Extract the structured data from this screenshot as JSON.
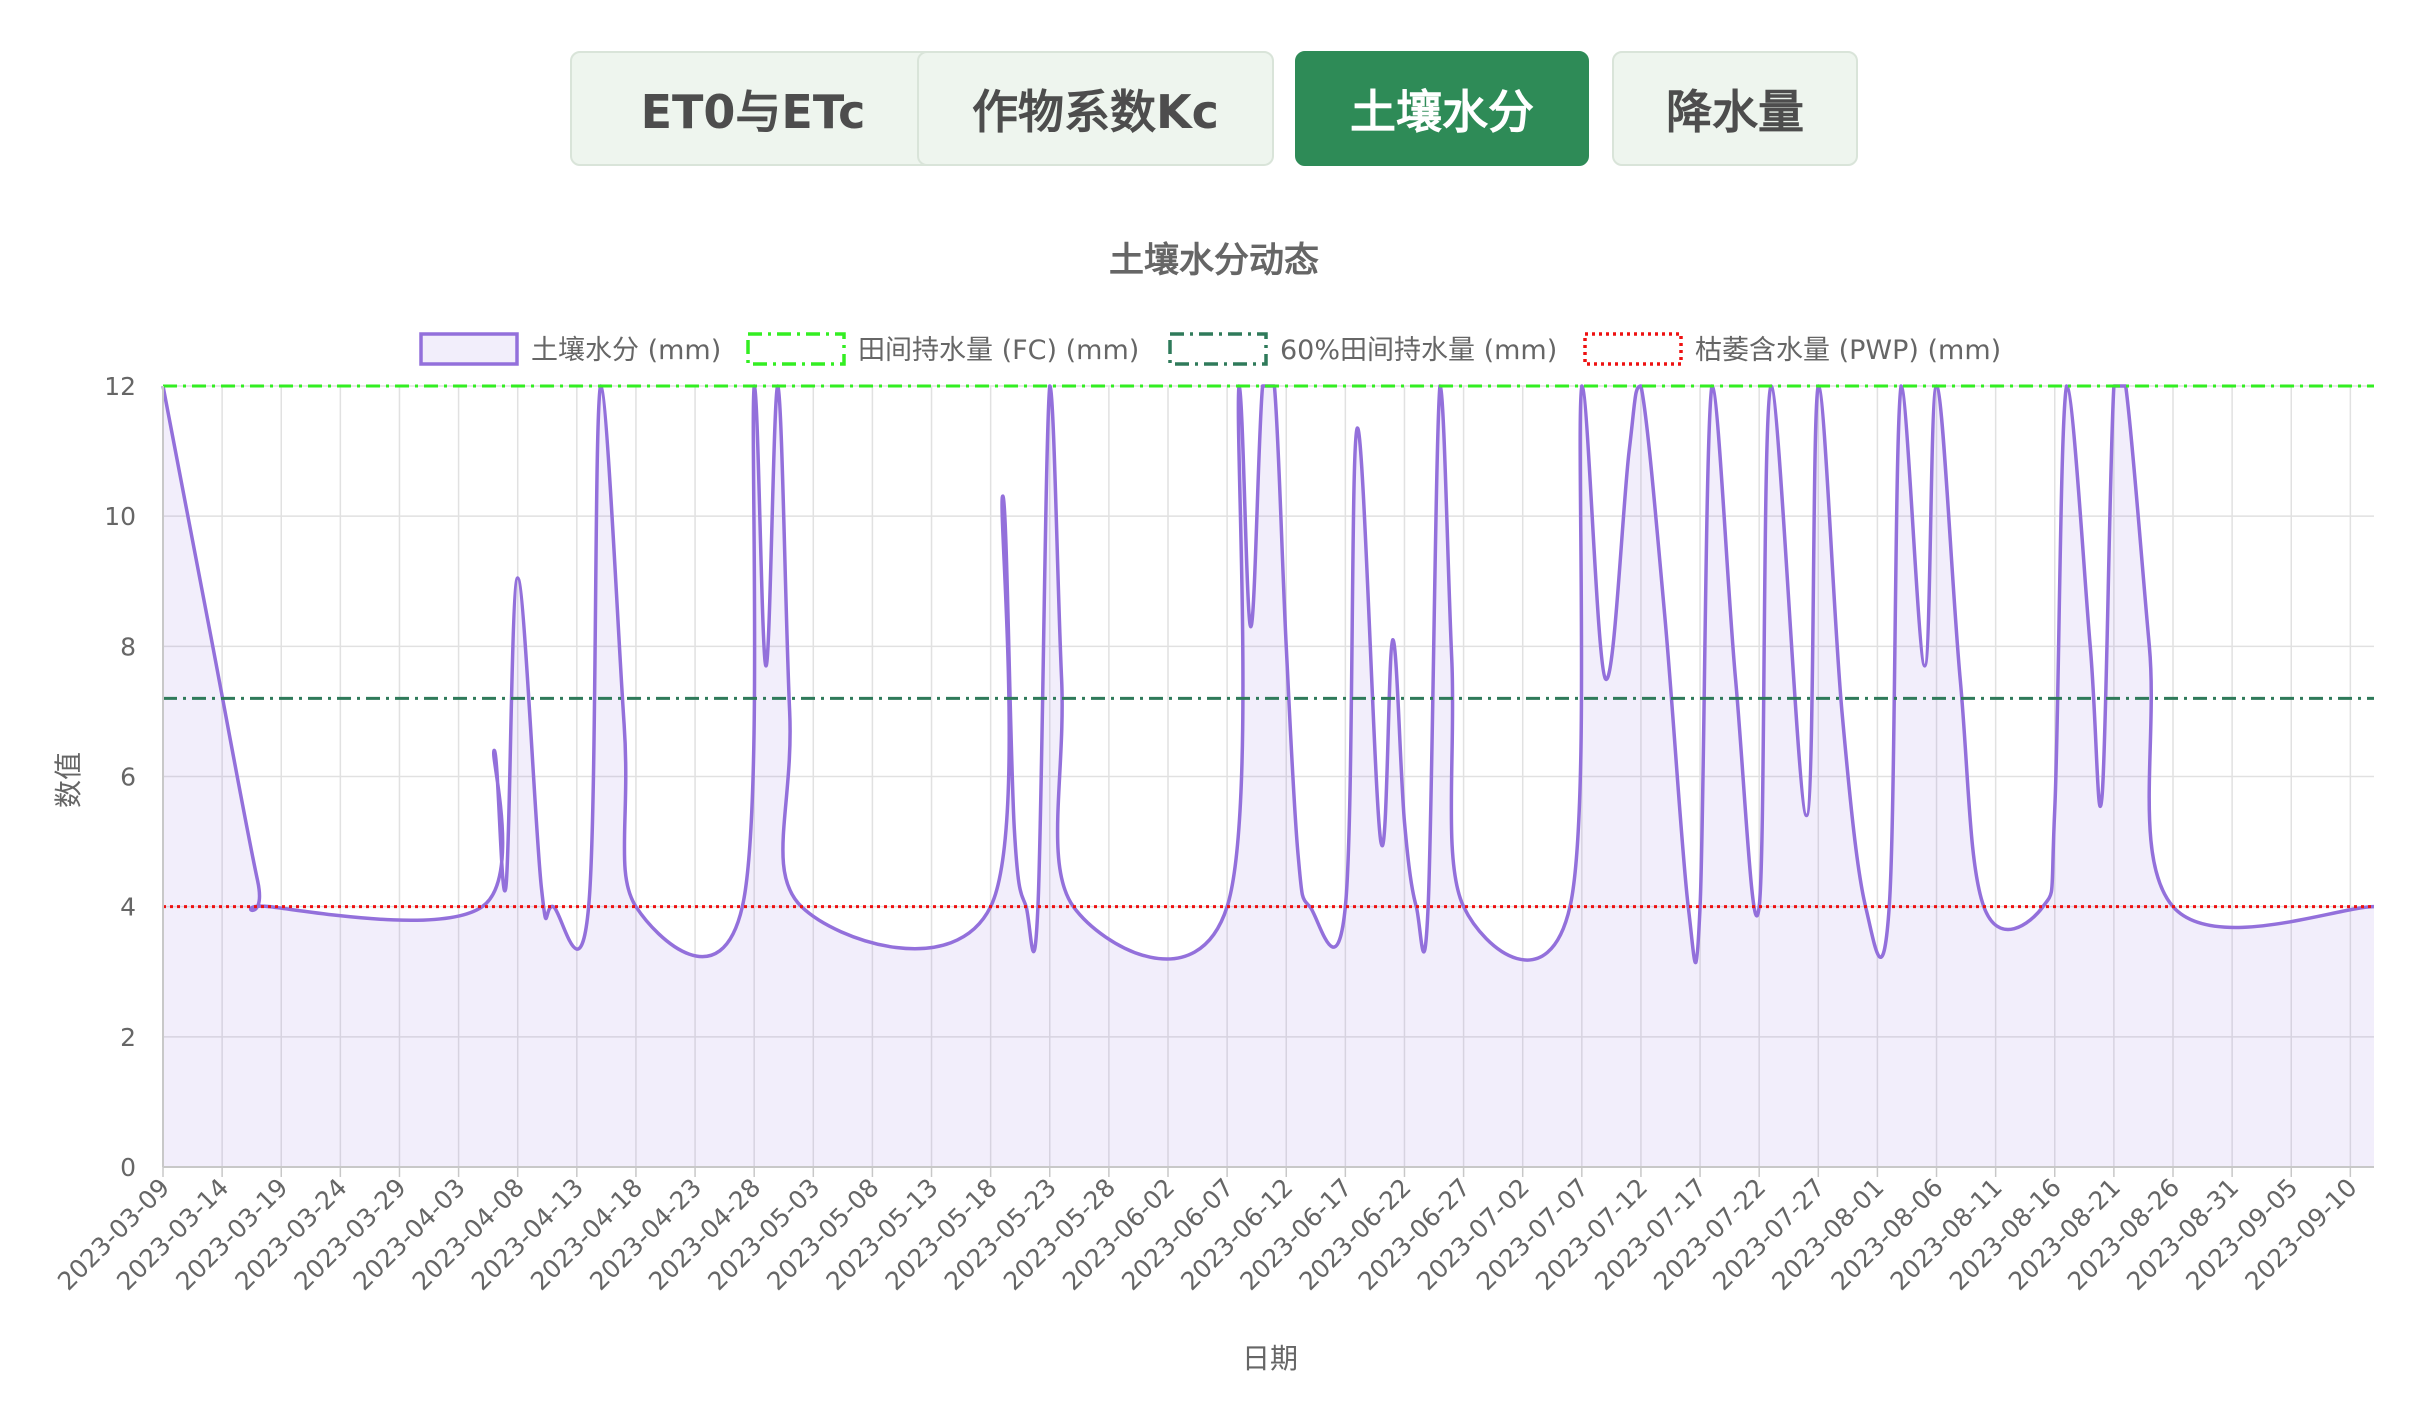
{
  "tabs": [
    {
      "label": "ET0与ETc",
      "active": false
    },
    {
      "label": "作物系数Kc",
      "active": false
    },
    {
      "label": "土壤水分",
      "active": true
    },
    {
      "label": "降水量",
      "active": false
    }
  ],
  "chart_data": {
    "type": "line",
    "title": "土壤水分动态",
    "xlabel": "日期",
    "ylabel": "数值",
    "ylim": [
      0,
      12
    ],
    "y_ticks": [
      0,
      2,
      4,
      6,
      8,
      10,
      12
    ],
    "x_range": [
      "2023-03-09",
      "2023-09-12"
    ],
    "x_tick_labels": [
      "2023-03-09",
      "2023-03-14",
      "2023-03-19",
      "2023-03-24",
      "2023-03-29",
      "2023-04-03",
      "2023-04-08",
      "2023-04-13",
      "2023-04-18",
      "2023-04-23",
      "2023-04-28",
      "2023-05-03",
      "2023-05-08",
      "2023-05-13",
      "2023-05-18",
      "2023-05-23",
      "2023-05-28",
      "2023-06-02",
      "2023-06-07",
      "2023-06-12",
      "2023-06-17",
      "2023-06-22",
      "2023-06-27",
      "2023-07-02",
      "2023-07-07",
      "2023-07-12",
      "2023-07-17",
      "2023-07-22",
      "2023-07-27",
      "2023-08-01",
      "2023-08-06",
      "2023-08-11",
      "2023-08-16",
      "2023-08-21",
      "2023-08-26",
      "2023-08-31",
      "2023-09-05",
      "2023-09-10"
    ],
    "grid": true,
    "legend_position": "top-center",
    "series": [
      {
        "name": "土壤水分 (mm)",
        "color": "#9370db",
        "fill": "rgba(147,112,219,0.12)",
        "style": "solid",
        "points": [
          [
            "2023-03-09",
            12
          ],
          [
            "2023-03-13",
            8.2
          ],
          [
            "2023-03-17",
            4.4
          ],
          [
            "2023-03-18",
            4
          ],
          [
            "2023-04-05",
            4
          ],
          [
            "2023-04-06",
            6.4
          ],
          [
            "2023-04-07",
            4.3
          ],
          [
            "2023-04-08",
            9.05
          ],
          [
            "2023-04-10",
            4.3
          ],
          [
            "2023-04-11",
            4
          ],
          [
            "2023-04-14",
            4
          ],
          [
            "2023-04-15",
            12
          ],
          [
            "2023-04-17",
            6.8
          ],
          [
            "2023-04-18",
            4
          ],
          [
            "2023-04-27",
            4
          ],
          [
            "2023-04-28",
            12
          ],
          [
            "2023-04-29",
            7.7
          ],
          [
            "2023-04-30",
            12
          ],
          [
            "2023-05-01",
            7
          ],
          [
            "2023-05-02",
            4
          ],
          [
            "2023-05-18",
            4
          ],
          [
            "2023-05-19",
            10.3
          ],
          [
            "2023-05-20",
            5.2
          ],
          [
            "2023-05-21",
            4
          ],
          [
            "2023-05-22",
            4
          ],
          [
            "2023-05-23",
            12
          ],
          [
            "2023-05-24",
            7.5
          ],
          [
            "2023-05-25",
            4
          ],
          [
            "2023-06-07",
            4
          ],
          [
            "2023-06-08",
            12
          ],
          [
            "2023-06-09",
            8.3
          ],
          [
            "2023-06-10",
            12
          ],
          [
            "2023-06-11",
            12
          ],
          [
            "2023-06-12",
            8
          ],
          [
            "2023-06-13",
            4.8
          ],
          [
            "2023-06-14",
            4
          ],
          [
            "2023-06-17",
            4
          ],
          [
            "2023-06-18",
            11.35
          ],
          [
            "2023-06-20",
            5
          ],
          [
            "2023-06-21",
            8.1
          ],
          [
            "2023-06-22",
            5.3
          ],
          [
            "2023-06-23",
            4
          ],
          [
            "2023-06-24",
            4
          ],
          [
            "2023-06-25",
            12
          ],
          [
            "2023-06-26",
            7.8
          ],
          [
            "2023-06-27",
            4
          ],
          [
            "2023-07-06",
            4
          ],
          [
            "2023-07-07",
            12
          ],
          [
            "2023-07-09",
            7.5
          ],
          [
            "2023-07-11",
            11
          ],
          [
            "2023-07-12",
            12
          ],
          [
            "2023-07-14",
            8.5
          ],
          [
            "2023-07-16",
            4
          ],
          [
            "2023-07-17",
            4
          ],
          [
            "2023-07-18",
            12
          ],
          [
            "2023-07-20",
            7.5
          ],
          [
            "2023-07-22",
            4
          ],
          [
            "2023-07-23",
            12
          ],
          [
            "2023-07-26",
            5.4
          ],
          [
            "2023-07-27",
            12
          ],
          [
            "2023-07-29",
            7
          ],
          [
            "2023-07-31",
            4
          ],
          [
            "2023-08-02",
            4
          ],
          [
            "2023-08-03",
            12
          ],
          [
            "2023-08-05",
            7.7
          ],
          [
            "2023-08-06",
            12
          ],
          [
            "2023-08-08",
            7.5
          ],
          [
            "2023-08-10",
            4
          ],
          [
            "2023-08-15",
            4
          ],
          [
            "2023-08-16",
            5.5
          ],
          [
            "2023-08-17",
            12
          ],
          [
            "2023-08-19",
            8
          ],
          [
            "2023-08-20",
            5.7
          ],
          [
            "2023-08-21",
            12
          ],
          [
            "2023-08-22",
            12
          ],
          [
            "2023-08-24",
            8
          ],
          [
            "2023-08-26",
            4
          ],
          [
            "2023-09-12",
            4
          ]
        ]
      },
      {
        "name": "田间持水量 (FC) (mm)",
        "color": "#33ee22",
        "style": "dashdot",
        "constant": 12
      },
      {
        "name": "60%田间持水量 (mm)",
        "color": "#2f7a5a",
        "style": "dashdot",
        "constant": 7.2
      },
      {
        "name": "枯萎含水量 (PWP) (mm)",
        "color": "#ee1111",
        "style": "dotted",
        "constant": 4
      }
    ]
  }
}
